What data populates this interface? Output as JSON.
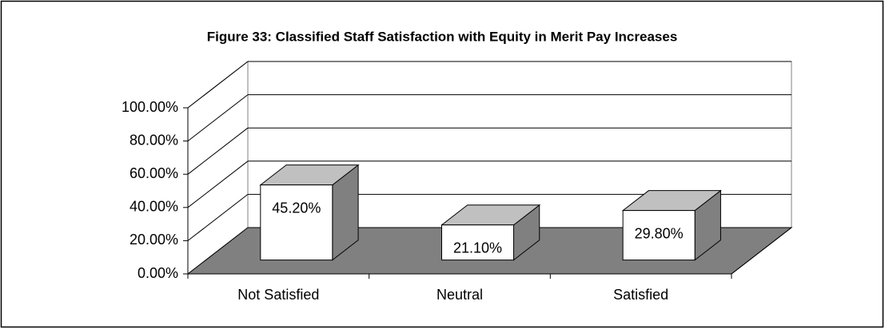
{
  "chart_data": {
    "type": "bar3d",
    "title": "Figure 33:  Classified Staff Satisfaction with Equity in Merit Pay Increases",
    "categories": [
      "Not Satisfied",
      "Neutral",
      "Satisfied"
    ],
    "values": [
      45.2,
      21.1,
      29.8
    ],
    "value_labels": [
      "45.20%",
      "21.10%",
      "29.80%"
    ],
    "color": "#ffffff",
    "ylim": [
      0,
      100
    ],
    "yticks": [
      {
        "value": 0,
        "label": "0.00%"
      },
      {
        "value": 20,
        "label": "20.00%"
      },
      {
        "value": 40,
        "label": "40.00%"
      },
      {
        "value": 60,
        "label": "60.00%"
      },
      {
        "value": 80,
        "label": "80.00%"
      },
      {
        "value": 100,
        "label": "100.00%"
      }
    ],
    "grid": true
  }
}
